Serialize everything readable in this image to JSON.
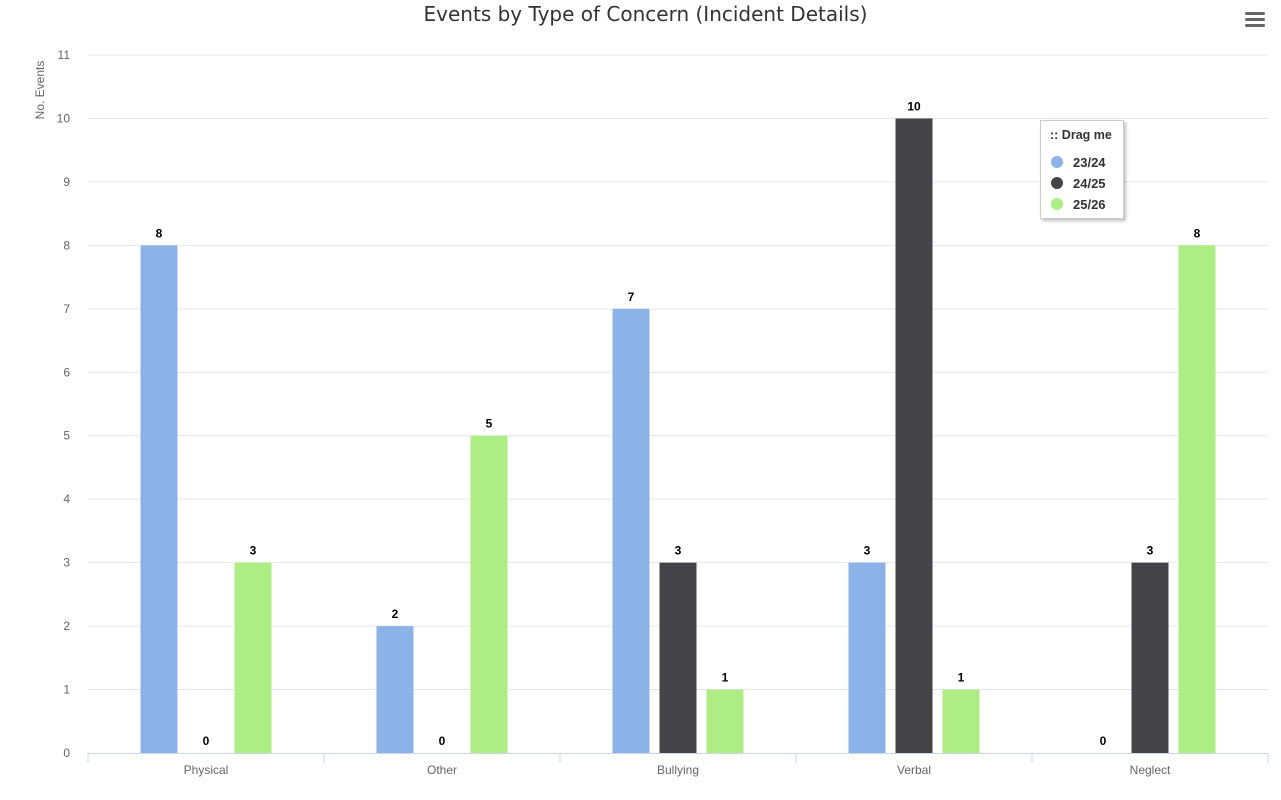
{
  "chart_data": {
    "type": "bar",
    "title": "Events by Type of Concern (Incident Details)",
    "ylabel": "No. Events",
    "xlabel": "",
    "categories": [
      "Physical",
      "Other",
      "Bullying",
      "Verbal",
      "Neglect"
    ],
    "ylim": [
      0,
      11
    ],
    "yticks": [
      0,
      1,
      2,
      3,
      4,
      5,
      6,
      7,
      8,
      9,
      10,
      11
    ],
    "grid": true,
    "series": [
      {
        "name": "23/24",
        "color": "#8bb3e8",
        "values": [
          8,
          2,
          7,
          3,
          0
        ]
      },
      {
        "name": "24/25",
        "color": "#434348",
        "values": [
          0,
          0,
          3,
          10,
          3
        ]
      },
      {
        "name": "25/26",
        "color": "#aeec84",
        "values": [
          3,
          5,
          1,
          1,
          8
        ]
      }
    ],
    "data_labels": true,
    "legend": {
      "title": ":: Drag me",
      "placement": "top-right"
    }
  },
  "menu": {
    "icon": "hamburger-menu-icon"
  }
}
